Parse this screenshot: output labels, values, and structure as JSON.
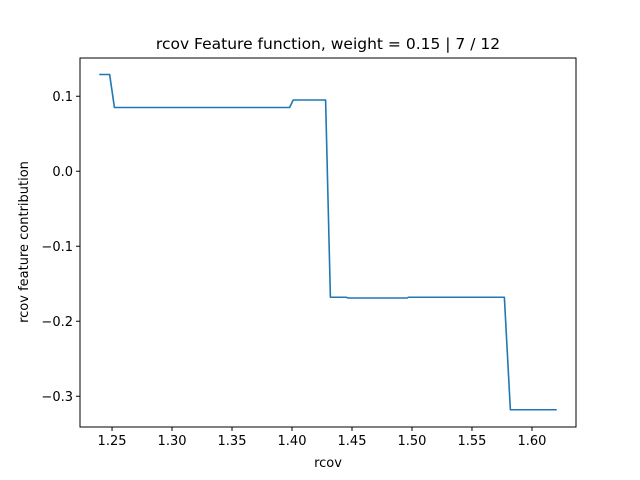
{
  "chart_data": {
    "type": "line",
    "title": "rcov Feature function, weight = 0.15 | 7 / 12",
    "xlabel": "rcov",
    "ylabel": "rcov feature contribution",
    "xlim": [
      1.2233,
      1.6367
    ],
    "ylim": [
      -0.341,
      0.151
    ],
    "xticks": [
      1.25,
      1.3,
      1.35,
      1.4,
      1.45,
      1.5,
      1.55,
      1.6
    ],
    "xtick_labels": [
      "1.25",
      "1.30",
      "1.35",
      "1.40",
      "1.45",
      "1.50",
      "1.55",
      "1.60"
    ],
    "yticks": [
      0.1,
      0.0,
      -0.1,
      -0.2,
      -0.3
    ],
    "ytick_labels": [
      "0.1",
      "0.0",
      "−0.1",
      "−0.2",
      "−0.3"
    ],
    "grid": false,
    "series": [
      {
        "color": "#1f77b4",
        "x": [
          1.24,
          1.248,
          1.252,
          1.398,
          1.401,
          1.428,
          1.432,
          1.445,
          1.447,
          1.496,
          1.497,
          1.577,
          1.582,
          1.62
        ],
        "y": [
          0.129,
          0.129,
          0.085,
          0.085,
          0.095,
          0.095,
          -0.168,
          -0.168,
          -0.169,
          -0.169,
          -0.168,
          -0.168,
          -0.318,
          -0.318
        ]
      }
    ]
  }
}
